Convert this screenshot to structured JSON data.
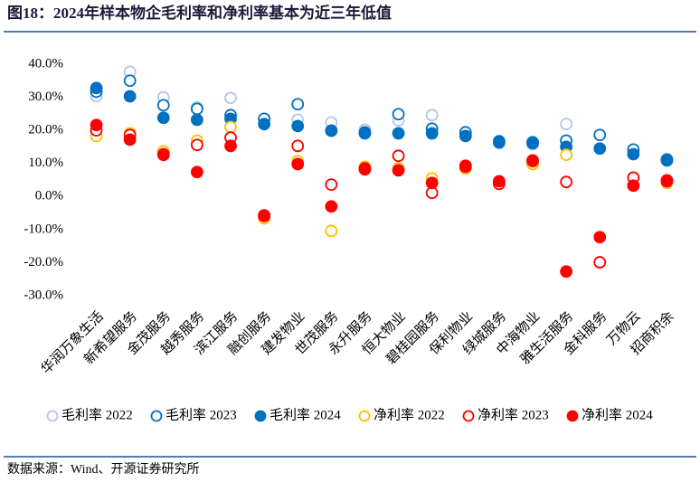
{
  "chart_data": {
    "type": "scatter",
    "title": "图18：2024年样本物企毛利率和净利率基本为近三年低值",
    "source": "数据来源：Wind、开源证券研究所",
    "categories": [
      "华润万象生活",
      "新希望服务",
      "金茂服务",
      "越秀服务",
      "滨江服务",
      "融创服务",
      "建发物业",
      "世茂服务",
      "永升服务",
      "恒大物业",
      "碧桂园服务",
      "保利物业",
      "绿城服务",
      "中海物业",
      "雅生活服务",
      "金科服务",
      "万物云",
      "招商积余"
    ],
    "series": [
      {
        "name": "毛利率 2022",
        "color": "#b4c7e7",
        "marker": "hollow",
        "values": [
          30.3,
          37.7,
          30.0,
          27.0,
          29.8,
          23.5,
          23.2,
          22.4,
          20.2,
          23.0,
          24.6,
          18.9,
          16.1,
          15.8,
          21.9,
          null,
          13.9,
          10.9
        ]
      },
      {
        "name": "毛利率 2023",
        "color": "#0070c0",
        "marker": "hollow",
        "values": [
          31.7,
          35.0,
          27.6,
          26.5,
          24.6,
          23.5,
          27.9,
          19.9,
          19.4,
          24.9,
          20.5,
          19.4,
          16.4,
          16.1,
          16.9,
          18.6,
          14.2,
          11.2
        ]
      },
      {
        "name": "毛利率 2024",
        "color": "#0070c0",
        "marker": "filled",
        "values": [
          32.8,
          30.3,
          23.8,
          23.2,
          23.5,
          21.9,
          21.3,
          19.9,
          19.1,
          19.1,
          19.1,
          18.3,
          16.7,
          16.4,
          15.0,
          14.5,
          12.8,
          10.9
        ]
      },
      {
        "name": "净利率 2022",
        "color": "#ffc000",
        "marker": "hollow",
        "values": [
          18.3,
          19.1,
          13.7,
          16.9,
          21.0,
          -6.6,
          10.7,
          -10.4,
          9.0,
          8.5,
          5.5,
          8.5,
          4.1,
          9.8,
          12.6,
          null,
          null,
          4.1
        ]
      },
      {
        "name": "净利率 2023",
        "color": "#ff0000",
        "marker": "hollow",
        "values": [
          20.0,
          18.6,
          12.8,
          15.6,
          17.8,
          -5.7,
          15.3,
          3.6,
          8.5,
          12.3,
          1.1,
          9.0,
          3.8,
          10.7,
          4.4,
          -19.9,
          5.7,
          4.6
        ]
      },
      {
        "name": "净利率 2024",
        "color": "#ff0000",
        "marker": "filled",
        "values": [
          21.6,
          17.2,
          12.6,
          7.4,
          15.3,
          -5.9,
          9.8,
          -3.0,
          8.2,
          7.9,
          4.1,
          9.3,
          4.6,
          10.9,
          -22.7,
          -12.3,
          3.3,
          4.9
        ]
      }
    ],
    "ylim": [
      -30,
      40
    ],
    "yticks": [
      {
        "value": -30,
        "label": "-30.0%"
      },
      {
        "value": -20,
        "label": "-20.0%"
      },
      {
        "value": -10,
        "label": "-10.0%"
      },
      {
        "value": 0,
        "label": "0.0%"
      },
      {
        "value": 10,
        "label": "10.0%"
      },
      {
        "value": 20,
        "label": "20.0%"
      },
      {
        "value": 30,
        "label": "30.0%"
      },
      {
        "value": 40,
        "label": "40.0%"
      }
    ],
    "grid": false
  }
}
